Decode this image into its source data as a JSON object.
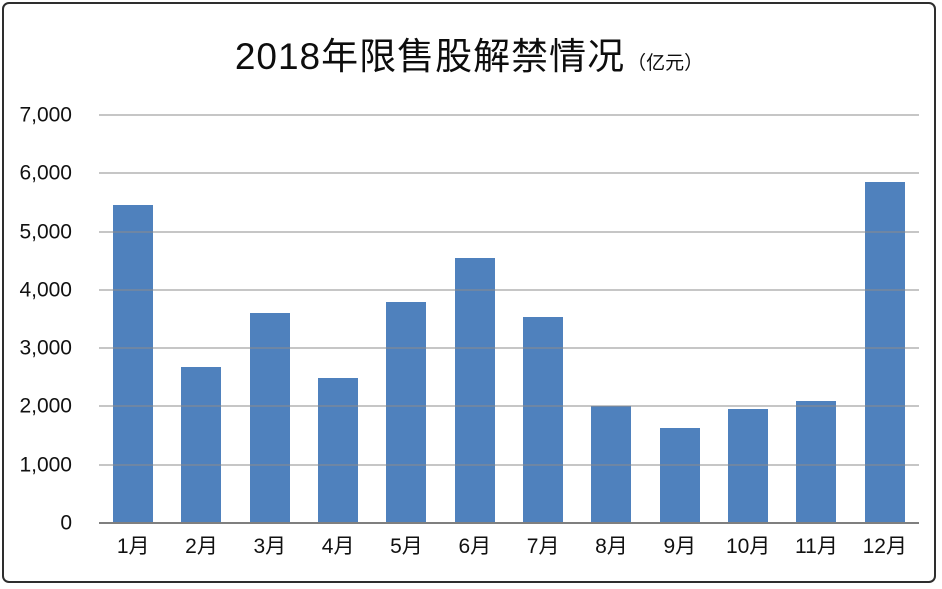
{
  "title": {
    "main": "2018年限售股解禁情况",
    "unit": "（亿元）"
  },
  "chart_data": {
    "type": "bar",
    "title": "2018年限售股解禁情况（亿元）",
    "categories": [
      "1月",
      "2月",
      "3月",
      "4月",
      "5月",
      "6月",
      "7月",
      "8月",
      "9月",
      "10月",
      "11月",
      "12月"
    ],
    "values": [
      5450,
      2670,
      3600,
      2480,
      3790,
      4540,
      3540,
      2000,
      1630,
      1950,
      2100,
      5850
    ],
    "xlabel": "",
    "ylabel": "",
    "ylim": [
      0,
      7000
    ],
    "ytick_interval": 1000,
    "ytick_labels": [
      "0",
      "1,000",
      "2,000",
      "3,000",
      "4,000",
      "5,000",
      "6,000",
      "7,000"
    ],
    "grid": true,
    "legend_position": "none",
    "colors": {
      "bar": "#4F81BD",
      "gridline": "#8c8c8c",
      "axis_line": "#7f7f7f",
      "text": "#111111",
      "frame_border": "#2e2e2e",
      "background": "#ffffff"
    }
  }
}
